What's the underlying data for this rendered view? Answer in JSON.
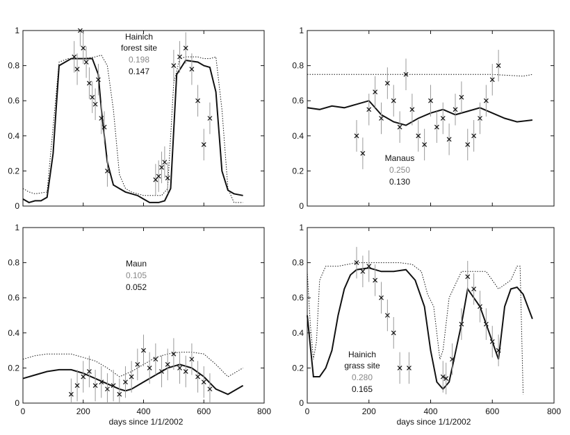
{
  "chart_data": [
    {
      "type": "line",
      "title": "Hainich forest site",
      "annotation": [
        "Hainich",
        "forest site"
      ],
      "score_gray": "0.198",
      "score_black": "0.147",
      "xlim": [
        0,
        800
      ],
      "ylim": [
        0,
        1
      ],
      "xticks": [],
      "yticks": [
        "0",
        "0.2",
        "0.4",
        "0.6",
        "0.8",
        "1"
      ],
      "xlabel": "",
      "series": [
        {
          "name": "dotted",
          "x": [
            0,
            20,
            40,
            80,
            100,
            120,
            150,
            200,
            240,
            260,
            280,
            300,
            320,
            340,
            360,
            400,
            440,
            460,
            480,
            500,
            520,
            540,
            560,
            580,
            600,
            620,
            640,
            660,
            680,
            700,
            730
          ],
          "y": [
            0.1,
            0.08,
            0.07,
            0.08,
            0.45,
            0.82,
            0.84,
            0.84,
            0.85,
            0.86,
            0.8,
            0.55,
            0.18,
            0.1,
            0.08,
            0.06,
            0.06,
            0.06,
            0.1,
            0.7,
            0.84,
            0.85,
            0.85,
            0.85,
            0.84,
            0.84,
            0.85,
            0.55,
            0.1,
            0.02,
            0.02
          ]
        },
        {
          "name": "solid",
          "x": [
            0,
            20,
            40,
            60,
            80,
            100,
            120,
            160,
            200,
            230,
            250,
            260,
            280,
            300,
            320,
            340,
            360,
            380,
            400,
            420,
            450,
            470,
            490,
            510,
            540,
            580,
            600,
            620,
            640,
            660,
            680,
            700,
            730
          ],
          "y": [
            0.04,
            0.02,
            0.03,
            0.03,
            0.05,
            0.3,
            0.8,
            0.84,
            0.84,
            0.84,
            0.75,
            0.55,
            0.25,
            0.12,
            0.1,
            0.08,
            0.07,
            0.06,
            0.04,
            0.02,
            0.02,
            0.03,
            0.1,
            0.75,
            0.83,
            0.82,
            0.8,
            0.79,
            0.65,
            0.2,
            0.09,
            0.07,
            0.06
          ]
        },
        {
          "name": "observations",
          "x": [
            170,
            180,
            190,
            200,
            210,
            220,
            230,
            240,
            250,
            260,
            270,
            280,
            440,
            450,
            460,
            470,
            480,
            500,
            520,
            540,
            560,
            580,
            600,
            620
          ],
          "y": [
            0.85,
            0.78,
            1.0,
            0.9,
            0.82,
            0.7,
            0.62,
            0.58,
            0.72,
            0.5,
            0.45,
            0.2,
            0.15,
            0.17,
            0.22,
            0.25,
            0.16,
            0.8,
            0.85,
            0.9,
            0.78,
            0.6,
            0.35,
            0.5
          ]
        }
      ]
    },
    {
      "type": "line",
      "title": "Manaus",
      "annotation": [
        "Manaus"
      ],
      "score_gray": "0.250",
      "score_black": "0.130",
      "xlim": [
        0,
        800
      ],
      "ylim": [
        0,
        1
      ],
      "xticks": [],
      "yticks": [
        "0",
        "0.2",
        "0.4",
        "0.6",
        "0.8",
        "1"
      ],
      "xlabel": "",
      "series": [
        {
          "name": "dotted",
          "x": [
            0,
            100,
            200,
            300,
            400,
            500,
            600,
            700,
            730
          ],
          "y": [
            0.75,
            0.75,
            0.75,
            0.75,
            0.75,
            0.75,
            0.75,
            0.74,
            0.75
          ]
        },
        {
          "name": "solid",
          "x": [
            0,
            40,
            80,
            120,
            160,
            200,
            240,
            280,
            320,
            360,
            400,
            440,
            480,
            520,
            560,
            600,
            640,
            680,
            730
          ],
          "y": [
            0.56,
            0.55,
            0.57,
            0.56,
            0.58,
            0.6,
            0.52,
            0.48,
            0.46,
            0.5,
            0.53,
            0.55,
            0.52,
            0.54,
            0.56,
            0.53,
            0.5,
            0.48,
            0.49
          ]
        },
        {
          "name": "observations",
          "x": [
            160,
            180,
            200,
            220,
            240,
            260,
            280,
            300,
            320,
            340,
            360,
            380,
            400,
            420,
            440,
            460,
            480,
            500,
            520,
            540,
            560,
            580,
            600,
            620
          ],
          "y": [
            0.4,
            0.3,
            0.55,
            0.65,
            0.5,
            0.7,
            0.6,
            0.45,
            0.75,
            0.55,
            0.4,
            0.35,
            0.6,
            0.45,
            0.5,
            0.38,
            0.55,
            0.62,
            0.35,
            0.4,
            0.5,
            0.6,
            0.72,
            0.8
          ]
        }
      ]
    },
    {
      "type": "line",
      "title": "Maun",
      "annotation": [
        "Maun"
      ],
      "score_gray": "0.105",
      "score_black": "0.052",
      "xlim": [
        0,
        800
      ],
      "ylim": [
        0,
        1
      ],
      "xticks": [
        "0",
        "200",
        "400",
        "600",
        "800"
      ],
      "yticks": [
        "0",
        "0.2",
        "0.4",
        "0.6",
        "0.8",
        "1"
      ],
      "xlabel": "days since 1/1/2002",
      "series": [
        {
          "name": "dotted",
          "x": [
            0,
            40,
            80,
            120,
            160,
            200,
            240,
            280,
            320,
            360,
            400,
            440,
            480,
            520,
            560,
            600,
            640,
            680,
            730
          ],
          "y": [
            0.25,
            0.27,
            0.28,
            0.28,
            0.28,
            0.26,
            0.24,
            0.2,
            0.15,
            0.18,
            0.22,
            0.26,
            0.28,
            0.29,
            0.29,
            0.28,
            0.22,
            0.15,
            0.2
          ]
        },
        {
          "name": "solid",
          "x": [
            0,
            40,
            80,
            120,
            160,
            200,
            240,
            280,
            320,
            340,
            360,
            400,
            440,
            480,
            520,
            560,
            600,
            640,
            680,
            730
          ],
          "y": [
            0.14,
            0.16,
            0.18,
            0.19,
            0.19,
            0.17,
            0.14,
            0.11,
            0.08,
            0.07,
            0.08,
            0.12,
            0.16,
            0.2,
            0.22,
            0.2,
            0.15,
            0.08,
            0.05,
            0.1
          ]
        },
        {
          "name": "observations",
          "x": [
            160,
            180,
            200,
            220,
            240,
            260,
            280,
            300,
            320,
            340,
            360,
            380,
            400,
            420,
            440,
            460,
            480,
            500,
            520,
            540,
            560,
            580,
            600,
            620
          ],
          "y": [
            0.05,
            0.1,
            0.15,
            0.18,
            0.1,
            0.12,
            0.08,
            0.1,
            0.05,
            0.12,
            0.15,
            0.22,
            0.3,
            0.2,
            0.25,
            0.18,
            0.22,
            0.28,
            0.2,
            0.18,
            0.25,
            0.15,
            0.12,
            0.08
          ]
        }
      ]
    },
    {
      "type": "line",
      "title": "Hainich grass site",
      "annotation": [
        "Hainich",
        "grass site"
      ],
      "score_gray": "0.280",
      "score_black": "0.165",
      "xlim": [
        0,
        800
      ],
      "ylim": [
        0,
        1
      ],
      "xticks": [
        "0",
        "200",
        "400",
        "600",
        "800"
      ],
      "yticks": [
        "0",
        "0.2",
        "0.4",
        "0.6",
        "0.8",
        "1"
      ],
      "xlabel": "days since 1/1/2002",
      "series": [
        {
          "name": "dotted",
          "x": [
            0,
            10,
            20,
            30,
            40,
            60,
            100,
            160,
            240,
            300,
            340,
            370,
            390,
            410,
            420,
            430,
            440,
            460,
            500,
            540,
            580,
            620,
            660,
            680,
            690,
            700
          ],
          "y": [
            0.75,
            0.45,
            0.25,
            0.35,
            0.7,
            0.78,
            0.78,
            0.8,
            0.8,
            0.8,
            0.79,
            0.75,
            0.62,
            0.55,
            0.4,
            0.25,
            0.3,
            0.6,
            0.75,
            0.75,
            0.75,
            0.65,
            0.7,
            0.78,
            0.78,
            0.05
          ]
        },
        {
          "name": "solid",
          "x": [
            0,
            20,
            40,
            60,
            80,
            100,
            120,
            140,
            160,
            200,
            240,
            280,
            320,
            350,
            380,
            400,
            420,
            440,
            460,
            500,
            520,
            560,
            600,
            620,
            640,
            660,
            680,
            700,
            730
          ],
          "y": [
            0.5,
            0.15,
            0.15,
            0.2,
            0.3,
            0.5,
            0.65,
            0.73,
            0.76,
            0.77,
            0.75,
            0.75,
            0.76,
            0.7,
            0.55,
            0.3,
            0.12,
            0.08,
            0.12,
            0.45,
            0.65,
            0.55,
            0.35,
            0.25,
            0.55,
            0.65,
            0.66,
            0.62,
            0.48
          ]
        },
        {
          "name": "observations",
          "x": [
            160,
            180,
            200,
            220,
            240,
            260,
            280,
            300,
            330,
            440,
            450,
            470,
            500,
            520,
            540,
            560,
            580,
            600,
            620
          ],
          "y": [
            0.8,
            0.75,
            0.78,
            0.7,
            0.6,
            0.5,
            0.4,
            0.2,
            0.2,
            0.15,
            0.14,
            0.25,
            0.45,
            0.72,
            0.65,
            0.55,
            0.45,
            0.35,
            0.3
          ]
        }
      ]
    }
  ]
}
